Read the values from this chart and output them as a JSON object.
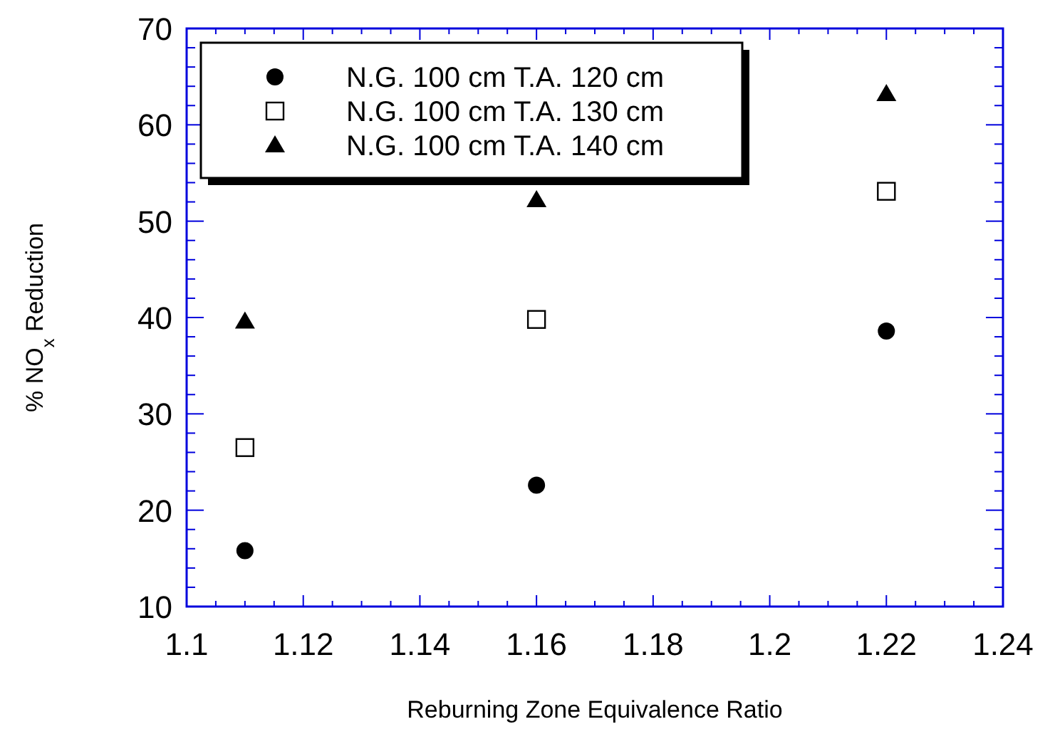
{
  "chart_data": {
    "type": "scatter",
    "xlabel": "Reburning Zone Equivalence Ratio",
    "ylabel": "% NO$_{x}$ Reduction",
    "x": [
      1.11,
      1.16,
      1.22
    ],
    "xlim": [
      1.1,
      1.24
    ],
    "xticks": [
      1.1,
      1.12,
      1.14,
      1.16,
      1.18,
      1.2,
      1.22,
      1.24
    ],
    "ylim": [
      10,
      70
    ],
    "yticks": [
      10,
      20,
      30,
      40,
      50,
      60,
      70
    ],
    "grid": false,
    "legend": "top left",
    "series": [
      {
        "name": "N.G. 100 cm T.A. 120 cm",
        "color": "#000000",
        "marker": "circle",
        "values": [
          15.8,
          22.6,
          38.6
        ]
      },
      {
        "name": "N.G. 100 cm T.A. 130 cm",
        "color": "#000000",
        "marker": "square",
        "values": [
          26.5,
          39.8,
          53.1
        ]
      },
      {
        "name": "N.G. 100 cm T.A. 140 cm",
        "color": "#000000",
        "marker": "triangle",
        "values": [
          39.6,
          52.2,
          63.2
        ]
      }
    ]
  }
}
